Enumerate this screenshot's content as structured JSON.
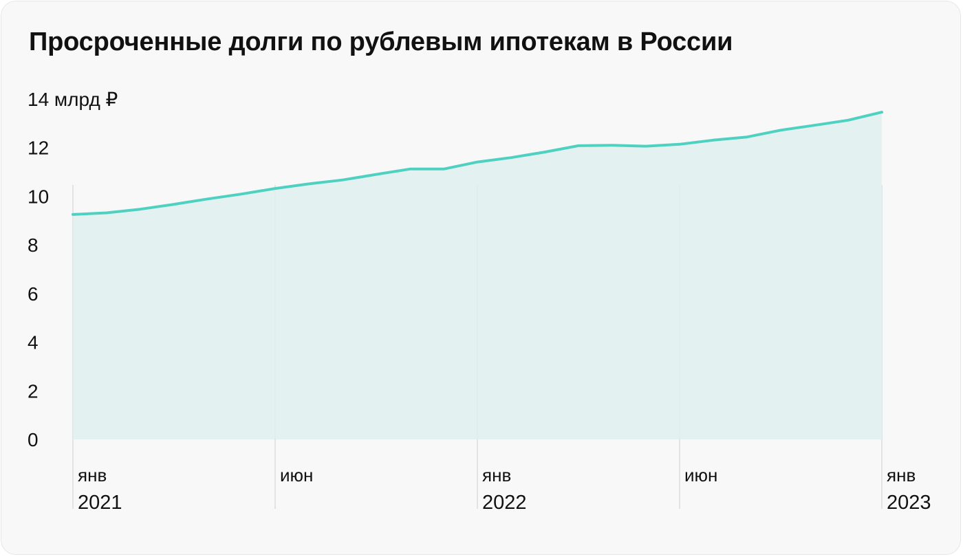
{
  "chart_data": {
    "type": "area",
    "title": "Просроченные долги по рублевым ипотекам в России",
    "ylabel": "",
    "y_unit": "млрд ₽",
    "ylim": [
      0,
      14
    ],
    "yticks": [
      0,
      2,
      4,
      6,
      8,
      10,
      12,
      14
    ],
    "x_tick_labels": [
      {
        "index": 0,
        "month": "янв",
        "year": "2021"
      },
      {
        "index": 6,
        "month": "июн",
        "year": ""
      },
      {
        "index": 12,
        "month": "янв",
        "year": "2022"
      },
      {
        "index": 18,
        "month": "июн",
        "year": ""
      },
      {
        "index": 24,
        "month": "янв",
        "year": "2023"
      }
    ],
    "series": [
      {
        "name": "",
        "x": [
          "2021-01",
          "2021-02",
          "2021-03",
          "2021-04",
          "2021-05",
          "2021-06",
          "2021-07",
          "2021-08",
          "2021-09",
          "2021-10",
          "2021-11",
          "2021-12",
          "2022-01",
          "2022-02",
          "2022-03",
          "2022-04",
          "2022-05",
          "2022-06",
          "2022-07",
          "2022-08",
          "2022-09",
          "2022-10",
          "2022-11",
          "2022-12",
          "2023-01"
        ],
        "values": [
          9.25,
          9.32,
          9.47,
          9.67,
          9.89,
          10.09,
          10.32,
          10.51,
          10.67,
          10.9,
          11.12,
          11.12,
          11.41,
          11.59,
          11.82,
          12.08,
          12.1,
          12.06,
          12.14,
          12.31,
          12.44,
          12.72,
          12.92,
          13.13,
          13.46
        ],
        "color": "#4fd1c2",
        "fill_color": "#dff1f0"
      }
    ],
    "grid": {
      "vertical_at_labeled_ticks": true,
      "horizontal": false
    },
    "background": "#f8f8f8"
  }
}
